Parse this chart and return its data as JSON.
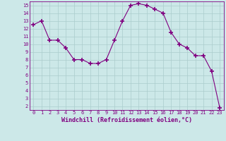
{
  "x": [
    0,
    1,
    2,
    3,
    4,
    5,
    6,
    7,
    8,
    9,
    10,
    11,
    12,
    13,
    14,
    15,
    16,
    17,
    18,
    19,
    20,
    21,
    22,
    23
  ],
  "y": [
    12.5,
    13.0,
    10.5,
    10.5,
    9.5,
    8.0,
    8.0,
    7.5,
    7.5,
    8.0,
    10.5,
    13.0,
    15.0,
    15.2,
    15.0,
    14.5,
    14.0,
    11.5,
    10.0,
    9.5,
    8.5,
    8.5,
    6.5,
    1.8
  ],
  "line_color": "#800080",
  "marker": "+",
  "marker_size": 4,
  "marker_lw": 1.2,
  "bg_color": "#cce8e8",
  "grid_color": "#aacccc",
  "xlim": [
    -0.5,
    23.5
  ],
  "ylim": [
    1.5,
    15.5
  ],
  "yticks": [
    2,
    3,
    4,
    5,
    6,
    7,
    8,
    9,
    10,
    11,
    12,
    13,
    14,
    15
  ],
  "xticks": [
    0,
    1,
    2,
    3,
    4,
    5,
    6,
    7,
    8,
    9,
    10,
    11,
    12,
    13,
    14,
    15,
    16,
    17,
    18,
    19,
    20,
    21,
    22,
    23
  ],
  "tick_label_color": "#800080",
  "axis_label_color": "#800080",
  "tick_fontsize": 5.0,
  "xlabel_fontsize": 6.0,
  "xlabel": "Windchill (Refroidissement éolien,°C)"
}
